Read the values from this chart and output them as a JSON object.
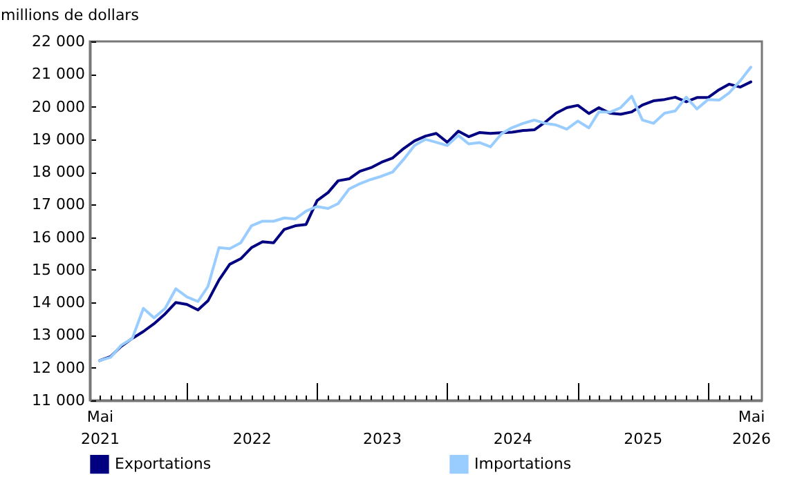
{
  "chart_data": {
    "type": "line",
    "ylabel": "millions de dollars",
    "legend": "bottom",
    "marker": "none",
    "line_style": "solid",
    "grid": false,
    "x": [
      "2021-05",
      "2021-06",
      "2021-07",
      "2021-08",
      "2021-09",
      "2021-10",
      "2021-11",
      "2021-12",
      "2022-01",
      "2022-02",
      "2022-03",
      "2022-04",
      "2022-05",
      "2022-06",
      "2022-07",
      "2022-08",
      "2022-09",
      "2022-10",
      "2022-11",
      "2022-12",
      "2023-01",
      "2023-02",
      "2023-03",
      "2023-04",
      "2023-05",
      "2023-06",
      "2023-07",
      "2023-08",
      "2023-09",
      "2023-10",
      "2023-11",
      "2023-12",
      "2024-01",
      "2024-02",
      "2024-03",
      "2024-04",
      "2024-05",
      "2024-06",
      "2024-07",
      "2024-08",
      "2024-09",
      "2024-10",
      "2024-11",
      "2024-12",
      "2025-01",
      "2025-02",
      "2025-03",
      "2025-04",
      "2025-05",
      "2025-06",
      "2025-07",
      "2025-08",
      "2025-09",
      "2025-10",
      "2025-11",
      "2025-12",
      "2026-01",
      "2026-02",
      "2026-03",
      "2026-04",
      "2026-05"
    ],
    "series": [
      {
        "name": "Exportations",
        "color": "#000080",
        "values": [
          12220,
          12340,
          12660,
          12900,
          13110,
          13350,
          13650,
          14000,
          13940,
          13770,
          14050,
          14690,
          15170,
          15340,
          15680,
          15860,
          15830,
          16240,
          16350,
          16390,
          17120,
          17370,
          17730,
          17790,
          18020,
          18130,
          18300,
          18430,
          18720,
          18950,
          19100,
          19180,
          18910,
          19250,
          19080,
          19210,
          19180,
          19200,
          19220,
          19270,
          19290,
          19520,
          19800,
          19970,
          20040,
          19790,
          19970,
          19800,
          19770,
          19840,
          20050,
          20180,
          20220,
          20290,
          20150,
          20280,
          20280,
          20520,
          20690,
          20600,
          20760
        ]
      },
      {
        "name": "Importations",
        "color": "#99ccff",
        "values": [
          12220,
          12320,
          12690,
          12900,
          13820,
          13530,
          13820,
          14420,
          14170,
          14030,
          14490,
          15680,
          15650,
          15830,
          16350,
          16490,
          16490,
          16590,
          16560,
          16800,
          16940,
          16880,
          17030,
          17480,
          17640,
          17770,
          17870,
          18000,
          18390,
          18810,
          19000,
          18910,
          18810,
          19120,
          18860,
          18900,
          18770,
          19170,
          19360,
          19490,
          19590,
          19490,
          19440,
          19310,
          19560,
          19350,
          19840,
          19830,
          19970,
          20320,
          19590,
          19490,
          19800,
          19870,
          20290,
          19930,
          20220,
          20200,
          20420,
          20790,
          21210
        ]
      }
    ],
    "xlim": [
      "2021-04-04",
      "2026-06-01"
    ],
    "xticks": [
      {
        "value": "2021-05",
        "label": "Mai\n2021"
      },
      {
        "value": "2021-06",
        "label": null
      },
      {
        "value": "2021-07",
        "label": null
      },
      {
        "value": "2021-08",
        "label": null
      },
      {
        "value": "2021-09",
        "label": null
      },
      {
        "value": "2021-10",
        "label": null
      },
      {
        "value": "2021-11",
        "label": null
      },
      {
        "value": "2021-12",
        "label": null
      },
      {
        "value": "2022-01",
        "label": null
      },
      {
        "value": "2022-02",
        "label": null
      },
      {
        "value": "2022-03",
        "label": null
      },
      {
        "value": "2022-04",
        "label": null
      },
      {
        "value": "2022-05",
        "label": null
      },
      {
        "value": "2022-06",
        "label": null
      },
      {
        "value": "2022-07",
        "label": "\n2022"
      },
      {
        "value": "2022-08",
        "label": null
      },
      {
        "value": "2022-09",
        "label": null
      },
      {
        "value": "2022-10",
        "label": null
      },
      {
        "value": "2022-11",
        "label": null
      },
      {
        "value": "2022-12",
        "label": null
      },
      {
        "value": "2023-01",
        "label": null
      },
      {
        "value": "2023-02",
        "label": null
      },
      {
        "value": "2023-03",
        "label": null
      },
      {
        "value": "2023-04",
        "label": null
      },
      {
        "value": "2023-05",
        "label": null
      },
      {
        "value": "2023-06",
        "label": null
      },
      {
        "value": "2023-07",
        "label": "\n2023"
      },
      {
        "value": "2023-08",
        "label": null
      },
      {
        "value": "2023-09",
        "label": null
      },
      {
        "value": "2023-10",
        "label": null
      },
      {
        "value": "2023-11",
        "label": null
      },
      {
        "value": "2023-12",
        "label": null
      },
      {
        "value": "2024-01",
        "label": null
      },
      {
        "value": "2024-02",
        "label": null
      },
      {
        "value": "2024-03",
        "label": null
      },
      {
        "value": "2024-04",
        "label": null
      },
      {
        "value": "2024-05",
        "label": null
      },
      {
        "value": "2024-06",
        "label": null
      },
      {
        "value": "2024-07",
        "label": "\n2024"
      },
      {
        "value": "2024-08",
        "label": null
      },
      {
        "value": "2024-09",
        "label": null
      },
      {
        "value": "2024-10",
        "label": null
      },
      {
        "value": "2024-11",
        "label": null
      },
      {
        "value": "2024-12",
        "label": null
      },
      {
        "value": "2025-01",
        "label": null
      },
      {
        "value": "2025-02",
        "label": null
      },
      {
        "value": "2025-03",
        "label": null
      },
      {
        "value": "2025-04",
        "label": null
      },
      {
        "value": "2025-05",
        "label": null
      },
      {
        "value": "2025-06",
        "label": null
      },
      {
        "value": "2025-07",
        "label": "\n2025"
      },
      {
        "value": "2025-08",
        "label": null
      },
      {
        "value": "2025-09",
        "label": null
      },
      {
        "value": "2025-10",
        "label": null
      },
      {
        "value": "2025-11",
        "label": null
      },
      {
        "value": "2025-12",
        "label": null
      },
      {
        "value": "2026-01",
        "label": null
      },
      {
        "value": "2026-02",
        "label": null
      },
      {
        "value": "2026-03",
        "label": null
      },
      {
        "value": "2026-04",
        "label": null
      },
      {
        "value": "2026-05",
        "label": "Mai\n2026"
      }
    ],
    "ylim": [
      11000,
      22000
    ],
    "yticks": [
      {
        "value": 11000,
        "label": "11 000"
      },
      {
        "value": 12000,
        "label": "12 000"
      },
      {
        "value": 13000,
        "label": "13 000"
      },
      {
        "value": 14000,
        "label": "14 000"
      },
      {
        "value": 15000,
        "label": "15 000"
      },
      {
        "value": 16000,
        "label": "16 000"
      },
      {
        "value": 17000,
        "label": "17 000"
      },
      {
        "value": 18000,
        "label": "18 000"
      },
      {
        "value": 19000,
        "label": "19 000"
      },
      {
        "value": 20000,
        "label": "20 000"
      },
      {
        "value": 21000,
        "label": "21 000"
      },
      {
        "value": 22000,
        "label": "22 000"
      }
    ]
  }
}
